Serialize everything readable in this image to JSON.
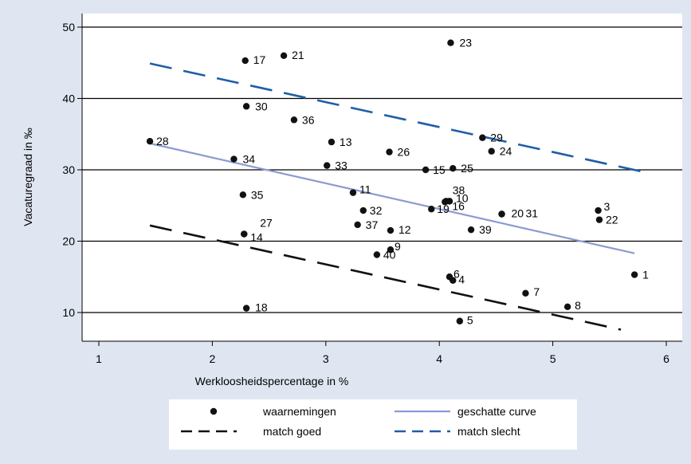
{
  "chart_data": {
    "type": "scatter",
    "xlabel": "Werkloosheidspercentage in %",
    "ylabel": "Vacaturegraad in ‰",
    "xlim": [
      0.9,
      6.1
    ],
    "ylim": [
      6.3,
      52
    ],
    "x_ticks": [
      1,
      2,
      3,
      4,
      5,
      6
    ],
    "y_ticks": [
      10,
      20,
      30,
      40,
      50
    ],
    "grid": "horizontal",
    "points": [
      {
        "label": "1",
        "x": 5.72,
        "y": 15.3
      },
      {
        "label": "3",
        "x": 5.4,
        "y": 24.3
      },
      {
        "label": "4",
        "x": 4.12,
        "y": 14.5
      },
      {
        "label": "5",
        "x": 4.18,
        "y": 8.8
      },
      {
        "label": "6",
        "x": 4.09,
        "y": 15.0
      },
      {
        "label": "7",
        "x": 4.76,
        "y": 12.7
      },
      {
        "label": "8",
        "x": 5.13,
        "y": 10.8
      },
      {
        "label": "9",
        "x": 3.57,
        "y": 18.8
      },
      {
        "label": "10",
        "x": 4.09,
        "y": 25.6
      },
      {
        "label": "11",
        "x": 3.24,
        "y": 26.8
      },
      {
        "label": "12",
        "x": 3.57,
        "y": 21.5
      },
      {
        "label": "13",
        "x": 3.05,
        "y": 33.9
      },
      {
        "label": "14",
        "x": 2.28,
        "y": 21.0
      },
      {
        "label": "15",
        "x": 3.88,
        "y": 30.0
      },
      {
        "label": "16",
        "x": 4.05,
        "y": 25.5
      },
      {
        "label": "17",
        "x": 2.29,
        "y": 45.3
      },
      {
        "label": "18",
        "x": 2.3,
        "y": 10.6
      },
      {
        "label": "19",
        "x": 3.93,
        "y": 24.5
      },
      {
        "label": "20",
        "x": 4.55,
        "y": 23.8
      },
      {
        "label": "21",
        "x": 2.63,
        "y": 46.0
      },
      {
        "label": "22",
        "x": 5.41,
        "y": 23.0
      },
      {
        "label": "23",
        "x": 4.1,
        "y": 47.8
      },
      {
        "label": "24",
        "x": 4.46,
        "y": 32.6
      },
      {
        "label": "25",
        "x": 4.12,
        "y": 30.2
      },
      {
        "label": "26",
        "x": 3.56,
        "y": 32.5
      },
      {
        "label": "27",
        "x": 2.28,
        "y": 21.0
      },
      {
        "label": "28",
        "x": 1.45,
        "y": 34.0
      },
      {
        "label": "29",
        "x": 4.38,
        "y": 34.5
      },
      {
        "label": "30",
        "x": 2.3,
        "y": 38.9
      },
      {
        "label": "31",
        "x": 4.55,
        "y": 23.8
      },
      {
        "label": "32",
        "x": 3.33,
        "y": 24.3
      },
      {
        "label": "33",
        "x": 3.01,
        "y": 30.6
      },
      {
        "label": "34",
        "x": 2.19,
        "y": 31.5
      },
      {
        "label": "35",
        "x": 2.27,
        "y": 26.5
      },
      {
        "label": "36",
        "x": 2.72,
        "y": 37.0
      },
      {
        "label": "37",
        "x": 3.28,
        "y": 22.3
      },
      {
        "label": "38",
        "x": 4.06,
        "y": 25.6
      },
      {
        "label": "39",
        "x": 4.28,
        "y": 21.6
      },
      {
        "label": "40",
        "x": 3.45,
        "y": 18.1
      }
    ],
    "lines": [
      {
        "name": "geschatte curve",
        "color": "#8b9bd2",
        "style": "solid",
        "x": [
          1.45,
          5.72
        ],
        "y": [
          33.7,
          18.3
        ]
      },
      {
        "name": "match goed",
        "color": "#111111",
        "style": "dashed",
        "x": [
          1.45,
          5.6
        ],
        "y": [
          22.2,
          7.6
        ]
      },
      {
        "name": "match slecht",
        "color": "#1f5ea8",
        "style": "dashed",
        "x": [
          1.45,
          5.8
        ],
        "y": [
          44.9,
          29.7
        ]
      }
    ],
    "legend": {
      "placement": "bottom",
      "entries": [
        {
          "label": "waarnemingen",
          "kind": "marker"
        },
        {
          "label": "geschatte curve",
          "kind": "solid",
          "color": "#8b9bd2"
        },
        {
          "label": "match goed",
          "kind": "dashed",
          "color": "#111111"
        },
        {
          "label": "match slecht",
          "kind": "dashed",
          "color": "#1f5ea8"
        }
      ]
    },
    "colors": {
      "background": "#dfe6f1",
      "plot_area": "#ffffff",
      "grid": "#000000"
    }
  }
}
